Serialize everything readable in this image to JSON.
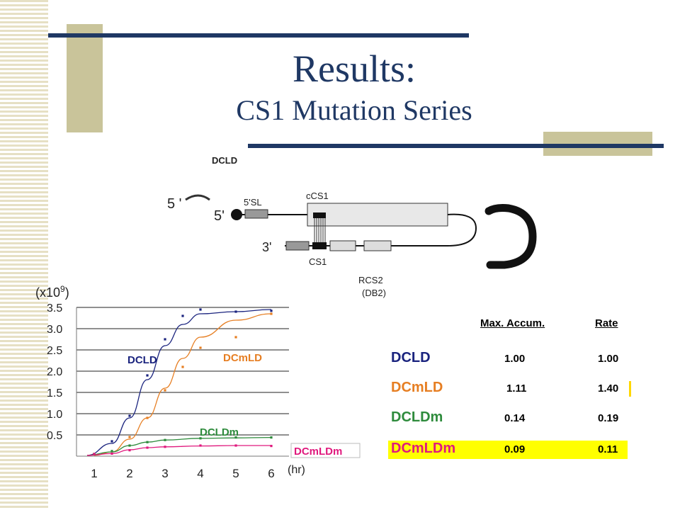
{
  "slide": {
    "title": "Results:",
    "subtitle": "CS1 Mutation Series",
    "colors": {
      "navy": "#1f3864",
      "tan": "#c9c49a",
      "stripe": "#e6e0c4"
    }
  },
  "diagram": {
    "top_label": "DCLD",
    "five_label_faded": "5 ' ",
    "five_label": "5'",
    "sl_label": "5'SL",
    "ccs1_label": "cCS1",
    "three_label": "3'",
    "cs1_label": "CS1",
    "rcs2_label": "RCS2",
    "db2_label": "(DB2)"
  },
  "chart_data": {
    "type": "line",
    "multiplier_label": "(x10",
    "multiplier_exp": "9",
    "multiplier_close": ")",
    "xunit": "(hr)",
    "x": [
      1,
      2,
      3,
      4,
      5,
      6
    ],
    "yticks": [
      "3.5",
      "3.0",
      "2.5",
      "2.0",
      "1.5",
      "1.0",
      "0.5"
    ],
    "ylim": [
      0,
      3.5
    ],
    "xlim": [
      0.5,
      6.5
    ],
    "grid": true,
    "series": [
      {
        "name": "DCLD",
        "color": "#1a237e",
        "points": [
          [
            1,
            0.05
          ],
          [
            1.5,
            0.35
          ],
          [
            2,
            0.95
          ],
          [
            2.5,
            1.9
          ],
          [
            3,
            2.75
          ],
          [
            3.5,
            3.3
          ],
          [
            4,
            3.45
          ],
          [
            5,
            3.4
          ],
          [
            6,
            3.42
          ]
        ],
        "curve": [
          [
            0.8,
            0.02
          ],
          [
            1.5,
            0.3
          ],
          [
            2,
            0.9
          ],
          [
            2.5,
            1.8
          ],
          [
            3,
            2.6
          ],
          [
            3.5,
            3.1
          ],
          [
            4,
            3.35
          ],
          [
            5,
            3.4
          ],
          [
            6,
            3.45
          ]
        ]
      },
      {
        "name": "DCmLD",
        "color": "#e67e22",
        "points": [
          [
            1,
            0.05
          ],
          [
            2,
            0.45
          ],
          [
            2.5,
            0.9
          ],
          [
            3,
            1.55
          ],
          [
            3.5,
            2.1
          ],
          [
            4,
            2.55
          ],
          [
            5,
            2.8
          ],
          [
            6,
            3.35
          ]
        ],
        "curve": [
          [
            1,
            0.02
          ],
          [
            1.5,
            0.1
          ],
          [
            2,
            0.4
          ],
          [
            2.5,
            0.9
          ],
          [
            3,
            1.6
          ],
          [
            3.5,
            2.3
          ],
          [
            4,
            2.8
          ],
          [
            5,
            3.2
          ],
          [
            6,
            3.35
          ]
        ]
      },
      {
        "name": "DCLDm",
        "color": "#2e8b3c",
        "points": [
          [
            1,
            0.05
          ],
          [
            1.5,
            0.12
          ],
          [
            2,
            0.25
          ],
          [
            2.5,
            0.33
          ],
          [
            3,
            0.38
          ],
          [
            4,
            0.42
          ],
          [
            5,
            0.44
          ],
          [
            6,
            0.44
          ]
        ],
        "curve": [
          [
            0.8,
            0.02
          ],
          [
            1.5,
            0.1
          ],
          [
            2,
            0.25
          ],
          [
            2.5,
            0.33
          ],
          [
            3,
            0.38
          ],
          [
            4,
            0.42
          ],
          [
            5,
            0.43
          ],
          [
            6,
            0.44
          ]
        ]
      },
      {
        "name": "DCmLDm",
        "color": "#e0197d",
        "points": [
          [
            1,
            0.05
          ],
          [
            1.5,
            0.06
          ],
          [
            2,
            0.14
          ],
          [
            2.5,
            0.2
          ],
          [
            3,
            0.22
          ],
          [
            4,
            0.25
          ],
          [
            5,
            0.25
          ],
          [
            6,
            0.24
          ]
        ],
        "curve": [
          [
            0.8,
            0.02
          ],
          [
            1.5,
            0.06
          ],
          [
            2,
            0.15
          ],
          [
            2.5,
            0.2
          ],
          [
            3,
            0.22
          ],
          [
            4,
            0.24
          ],
          [
            5,
            0.25
          ],
          [
            6,
            0.25
          ]
        ]
      }
    ]
  },
  "table": {
    "col1": "Max. Accum.",
    "col2": "Rate",
    "rows": [
      {
        "name": "DCLD",
        "max": "1.00",
        "rate": "1.00",
        "color": "#1a237e",
        "highlight": false
      },
      {
        "name": "DCmLD",
        "max": "1.11",
        "rate": "1.40",
        "color": "#e67e22",
        "highlight": false
      },
      {
        "name": "DCLDm",
        "max": "0.14",
        "rate": "0.19",
        "color": "#2e8b3c",
        "highlight": false
      },
      {
        "name": "DCmLDm",
        "max": "0.09",
        "rate": "0.11",
        "color": "#e0197d",
        "highlight": true,
        "highlight_color": "#ffff00"
      }
    ]
  }
}
